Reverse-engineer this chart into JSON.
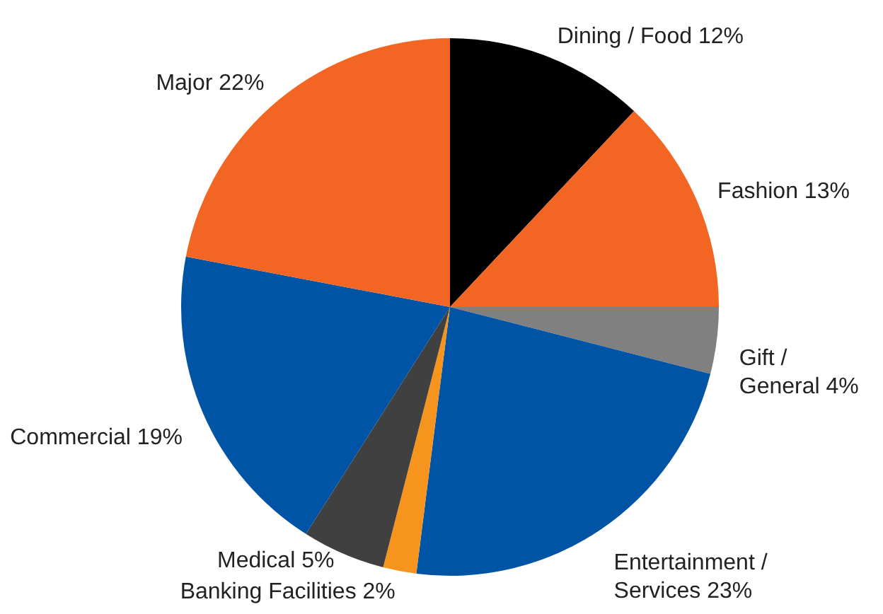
{
  "chart_data": {
    "type": "pie",
    "categories": [
      "Dining / Food 12%",
      "Fashion 13%",
      "Gift / General 4%",
      "Entertainment / Services 23%",
      "Banking Facilities 2%",
      "Medical 5%",
      "Commercial 19%",
      "Major 22%"
    ],
    "values": [
      12,
      13,
      4,
      23,
      2,
      5,
      19,
      22
    ],
    "colors": [
      "#000000",
      "#f26522",
      "#808080",
      "#0054a6",
      "#f7941d",
      "#404040",
      "#0054a6",
      "#f26522"
    ]
  }
}
